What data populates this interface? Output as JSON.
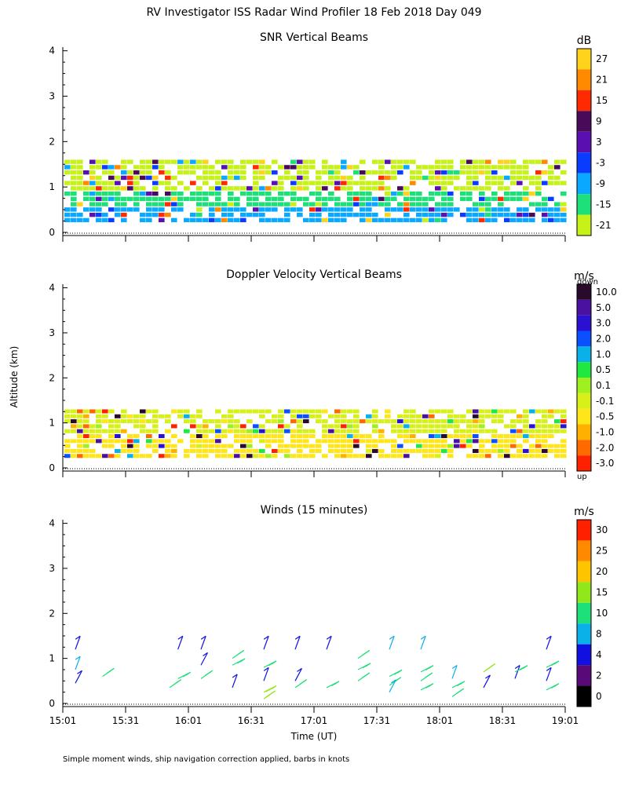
{
  "title": "RV Investigator ISS Radar Wind Profiler  18 Feb 2018 Day 049",
  "ylabel": "Altitude (km)",
  "xlabel": "Time (UT)",
  "footer": "Simple moment winds, ship navigation correction applied, barbs in knots",
  "chart_data": [
    {
      "type": "heatmap",
      "title": "SNR Vertical Beams",
      "ylabel": "Altitude (km)",
      "x_ticks": [
        "15:01",
        "15:31",
        "16:01",
        "16:31",
        "17:01",
        "17:31",
        "18:01",
        "18:31",
        "19:01"
      ],
      "y_ticks": [
        "0",
        "1",
        "2",
        "3",
        "4"
      ],
      "ylim": [
        0,
        4
      ],
      "colorbar": {
        "unit": "dB",
        "labels": [
          "27",
          "21",
          "15",
          "9",
          "3",
          "-3",
          "-9",
          "-15",
          "-21"
        ],
        "colors": [
          "#ffd21c",
          "#ff8a00",
          "#ff2a00",
          "#4a0a5a",
          "#5a10b0",
          "#0a3cff",
          "#0aa8ff",
          "#1ee07a",
          "#c6f21a"
        ]
      },
      "layers": [
        {
          "y_range": [
            0.2,
            0.55
          ],
          "dominant": "#0aa8ff"
        },
        {
          "y_range": [
            0.55,
            0.9
          ],
          "dominant": "#1ee07a"
        },
        {
          "y_range": [
            0.9,
            1.6
          ],
          "dominant": "#c6f21a"
        }
      ]
    },
    {
      "type": "heatmap",
      "title": "Doppler Velocity Vertical Beams",
      "ylabel": "Altitude (km)",
      "x_ticks": [
        "15:01",
        "15:31",
        "16:01",
        "16:31",
        "17:01",
        "17:31",
        "18:01",
        "18:31",
        "19:01"
      ],
      "y_ticks": [
        "0",
        "1",
        "2",
        "3",
        "4"
      ],
      "ylim": [
        0,
        4
      ],
      "colorbar": {
        "unit": "m/s",
        "top_label": "down",
        "bottom_label": "up",
        "labels": [
          "10.0",
          "5.0",
          "3.0",
          "2.0",
          "1.0",
          "0.5",
          "0.1",
          "-0.1",
          "-0.5",
          "-1.0",
          "-2.0",
          "-3.0"
        ],
        "colors": [
          "#2a0a2a",
          "#4a10a0",
          "#2a10d0",
          "#0a50ff",
          "#0ab0e8",
          "#20e840",
          "#a0f020",
          "#d8f01a",
          "#ffe61a",
          "#ffb000",
          "#ff6a00",
          "#ff2000"
        ]
      },
      "layers": [
        {
          "y_range": [
            0.2,
            0.75
          ],
          "dominant": "#ffe61a"
        },
        {
          "y_range": [
            0.75,
            1.3
          ],
          "dominant": "#d8f01a"
        }
      ]
    },
    {
      "type": "scatter",
      "title": "Winds (15 minutes)",
      "ylabel": "Altitude (km)",
      "x_ticks": [
        "15:01",
        "15:31",
        "16:01",
        "16:31",
        "17:01",
        "17:31",
        "18:01",
        "18:31",
        "19:01"
      ],
      "y_ticks": [
        "0",
        "1",
        "2",
        "3",
        "4"
      ],
      "ylim": [
        0,
        4
      ],
      "colorbar": {
        "unit": "m/s",
        "labels": [
          "30",
          "25",
          "20",
          "15",
          "10",
          "8",
          "4",
          "2",
          "0"
        ],
        "colors": [
          "#ff2000",
          "#ff8a00",
          "#ffc400",
          "#90e81a",
          "#1ee07a",
          "#0ab0e8",
          "#1010e0",
          "#5a0a78",
          "#000000"
        ]
      },
      "time_columns": [
        {
          "time": "15:07",
          "barbs": [
            {
              "y": 0.75,
              "speed": 8
            },
            {
              "y": 0.45,
              "speed": 4
            },
            {
              "y": 1.2,
              "speed": 4
            }
          ]
        },
        {
          "time": "15:20",
          "barbs": [
            {
              "y": 0.6,
              "speed": 12
            }
          ]
        },
        {
          "time": "15:52",
          "barbs": [
            {
              "y": 0.35,
              "speed": 12
            }
          ]
        },
        {
          "time": "15:56",
          "barbs": [
            {
              "y": 1.2,
              "speed": 4
            },
            {
              "y": 0.55,
              "speed": 12
            }
          ]
        },
        {
          "time": "16:07",
          "barbs": [
            {
              "y": 1.2,
              "speed": 4
            },
            {
              "y": 0.85,
              "speed": 4
            },
            {
              "y": 0.55,
              "speed": 12
            }
          ]
        },
        {
          "time": "16:22",
          "barbs": [
            {
              "y": 1.0,
              "speed": 12
            },
            {
              "y": 0.85,
              "speed": 12
            },
            {
              "y": 0.35,
              "speed": 4
            }
          ]
        },
        {
          "time": "16:37",
          "barbs": [
            {
              "y": 1.2,
              "speed": 4
            },
            {
              "y": 0.8,
              "speed": 12
            },
            {
              "y": 0.5,
              "speed": 4
            },
            {
              "y": 0.25,
              "speed": 15
            },
            {
              "y": 0.1,
              "speed": 15
            }
          ]
        },
        {
          "time": "16:52",
          "barbs": [
            {
              "y": 1.2,
              "speed": 4
            },
            {
              "y": 0.5,
              "speed": 4
            },
            {
              "y": 0.35,
              "speed": 12
            }
          ]
        },
        {
          "time": "17:07",
          "barbs": [
            {
              "y": 1.2,
              "speed": 4
            },
            {
              "y": 0.35,
              "speed": 12
            }
          ]
        },
        {
          "time": "17:22",
          "barbs": [
            {
              "y": 1.0,
              "speed": 12
            },
            {
              "y": 0.75,
              "speed": 12
            },
            {
              "y": 0.5,
              "speed": 12
            }
          ]
        },
        {
          "time": "17:37",
          "barbs": [
            {
              "y": 1.2,
              "speed": 8
            },
            {
              "y": 0.6,
              "speed": 12
            },
            {
              "y": 0.4,
              "speed": 12
            },
            {
              "y": 0.25,
              "speed": 8
            }
          ]
        },
        {
          "time": "17:52",
          "barbs": [
            {
              "y": 1.2,
              "speed": 8
            },
            {
              "y": 0.7,
              "speed": 12
            },
            {
              "y": 0.5,
              "speed": 12
            },
            {
              "y": 0.3,
              "speed": 12
            }
          ]
        },
        {
          "time": "18:07",
          "barbs": [
            {
              "y": 0.55,
              "speed": 8
            },
            {
              "y": 0.35,
              "speed": 12
            },
            {
              "y": 0.15,
              "speed": 12
            }
          ]
        },
        {
          "time": "18:22",
          "barbs": [
            {
              "y": 0.7,
              "speed": 15
            },
            {
              "y": 0.35,
              "speed": 4
            }
          ]
        },
        {
          "time": "18:37",
          "barbs": [
            {
              "y": 0.55,
              "speed": 4
            },
            {
              "y": 0.7,
              "speed": 12
            }
          ]
        },
        {
          "time": "18:52",
          "barbs": [
            {
              "y": 1.2,
              "speed": 4
            },
            {
              "y": 0.8,
              "speed": 12
            },
            {
              "y": 0.5,
              "speed": 4
            },
            {
              "y": 0.3,
              "speed": 12
            }
          ]
        }
      ]
    }
  ]
}
